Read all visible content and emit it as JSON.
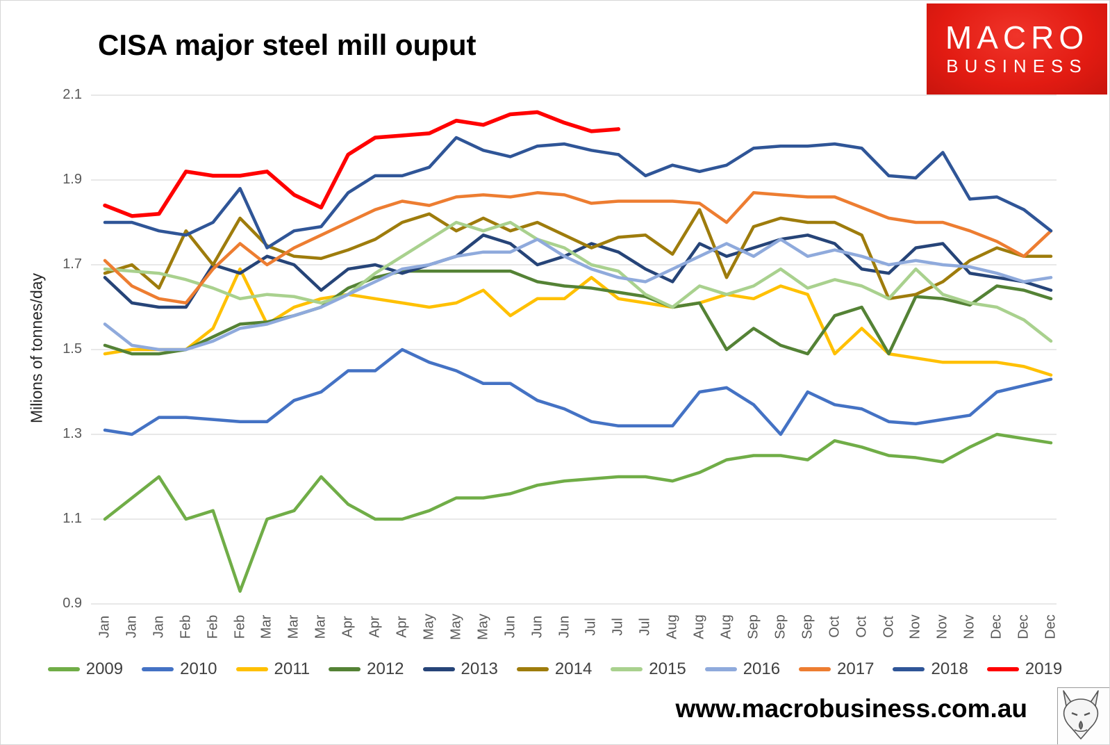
{
  "header": {
    "title": "CISA major steel mill ouput"
  },
  "brand": {
    "line1": "MACRO",
    "line2": "BUSINESS",
    "bg_color": "#E21B12",
    "text_color": "#FFFFFF"
  },
  "footer": {
    "url": "www.macrobusiness.com.au"
  },
  "icons": {
    "fox_logo": "fox-head-sketch"
  },
  "chart_data": {
    "type": "line",
    "title": "CISA major steel mill ouput",
    "xlabel": "",
    "ylabel": "Milions of tonnes/day",
    "ylim": [
      0.9,
      2.1
    ],
    "yticks": [
      2.1,
      1.9,
      1.7,
      1.5,
      1.3,
      1.1,
      0.9
    ],
    "grid": "horizontal",
    "gridline_color": "#D9D9D9",
    "tick_label_color": "#595959",
    "legend_position": "bottom",
    "x_labels": [
      "Jan",
      "Jan",
      "Jan",
      "Feb",
      "Feb",
      "Feb",
      "Mar",
      "Mar",
      "Mar",
      "Apr",
      "Apr",
      "Apr",
      "May",
      "May",
      "May",
      "Jun",
      "Jun",
      "Jun",
      "Jul",
      "Jul",
      "Jul",
      "Aug",
      "Aug",
      "Aug",
      "Sep",
      "Sep",
      "Sep",
      "Oct",
      "Oct",
      "Oct",
      "Nov",
      "Nov",
      "Nov",
      "Dec",
      "Dec",
      "Dec"
    ],
    "series": [
      {
        "name": "2009",
        "color": "#70AD47",
        "values": [
          1.1,
          1.15,
          1.2,
          1.1,
          1.12,
          0.93,
          1.1,
          1.12,
          1.2,
          1.135,
          1.1,
          1.1,
          1.12,
          1.15,
          1.15,
          1.16,
          1.18,
          1.19,
          1.195,
          1.2,
          1.2,
          1.19,
          1.21,
          1.24,
          1.25,
          1.25,
          1.24,
          1.285,
          1.27,
          1.25,
          1.245,
          1.235,
          1.27,
          1.3,
          1.29,
          1.28
        ]
      },
      {
        "name": "2010",
        "color": "#4472C4",
        "values": [
          1.31,
          1.3,
          1.34,
          1.34,
          1.335,
          1.33,
          1.33,
          1.38,
          1.4,
          1.45,
          1.45,
          1.5,
          1.47,
          1.45,
          1.42,
          1.42,
          1.38,
          1.36,
          1.33,
          1.32,
          1.32,
          1.32,
          1.4,
          1.41,
          1.37,
          1.3,
          1.4,
          1.37,
          1.36,
          1.33,
          1.325,
          1.335,
          1.345,
          1.4,
          1.415,
          1.43
        ]
      },
      {
        "name": "2011",
        "color": "#FFC000",
        "values": [
          1.49,
          1.5,
          1.5,
          1.5,
          1.55,
          1.69,
          1.56,
          1.6,
          1.62,
          1.63,
          1.62,
          1.61,
          1.6,
          1.61,
          1.64,
          1.58,
          1.62,
          1.62,
          1.67,
          1.62,
          1.61,
          1.6,
          1.61,
          1.63,
          1.62,
          1.65,
          1.63,
          1.49,
          1.55,
          1.49,
          1.48,
          1.47,
          1.47,
          1.47,
          1.46,
          1.44
        ]
      },
      {
        "name": "2012",
        "color": "#548235",
        "values": [
          1.51,
          1.49,
          1.49,
          1.5,
          1.53,
          1.56,
          1.565,
          1.58,
          1.6,
          1.645,
          1.67,
          1.685,
          1.685,
          1.685,
          1.685,
          1.685,
          1.66,
          1.65,
          1.645,
          1.635,
          1.625,
          1.6,
          1.61,
          1.5,
          1.55,
          1.51,
          1.49,
          1.58,
          1.6,
          1.49,
          1.625,
          1.62,
          1.605,
          1.65,
          1.64,
          1.62
        ]
      },
      {
        "name": "2013",
        "color": "#264478",
        "values": [
          1.67,
          1.61,
          1.6,
          1.6,
          1.7,
          1.68,
          1.72,
          1.7,
          1.64,
          1.69,
          1.7,
          1.68,
          1.7,
          1.72,
          1.77,
          1.75,
          1.7,
          1.72,
          1.75,
          1.73,
          1.69,
          1.66,
          1.75,
          1.72,
          1.74,
          1.76,
          1.77,
          1.75,
          1.69,
          1.68,
          1.74,
          1.75,
          1.68,
          1.67,
          1.66,
          1.64
        ]
      },
      {
        "name": "2014",
        "color": "#9E7C0C",
        "values": [
          1.68,
          1.7,
          1.645,
          1.78,
          1.7,
          1.81,
          1.745,
          1.72,
          1.715,
          1.735,
          1.76,
          1.8,
          1.82,
          1.78,
          1.81,
          1.78,
          1.8,
          1.77,
          1.74,
          1.765,
          1.77,
          1.725,
          1.83,
          1.67,
          1.79,
          1.81,
          1.8,
          1.8,
          1.77,
          1.62,
          1.63,
          1.66,
          1.71,
          1.74,
          1.72,
          1.72
        ]
      },
      {
        "name": "2015",
        "color": "#A9D18E",
        "values": [
          1.69,
          1.685,
          1.68,
          1.665,
          1.645,
          1.62,
          1.63,
          1.625,
          1.61,
          1.63,
          1.68,
          1.72,
          1.76,
          1.8,
          1.78,
          1.8,
          1.76,
          1.74,
          1.7,
          1.685,
          1.63,
          1.6,
          1.65,
          1.63,
          1.65,
          1.69,
          1.645,
          1.665,
          1.65,
          1.62,
          1.69,
          1.63,
          1.61,
          1.6,
          1.57,
          1.52
        ]
      },
      {
        "name": "2016",
        "color": "#8FAADC",
        "values": [
          1.56,
          1.51,
          1.5,
          1.5,
          1.52,
          1.55,
          1.56,
          1.58,
          1.6,
          1.63,
          1.66,
          1.69,
          1.7,
          1.72,
          1.73,
          1.73,
          1.76,
          1.72,
          1.69,
          1.67,
          1.66,
          1.69,
          1.72,
          1.75,
          1.72,
          1.76,
          1.72,
          1.735,
          1.72,
          1.7,
          1.71,
          1.7,
          1.695,
          1.68,
          1.66,
          1.67
        ]
      },
      {
        "name": "2017",
        "color": "#ED7D31",
        "values": [
          1.71,
          1.65,
          1.62,
          1.61,
          1.69,
          1.75,
          1.7,
          1.74,
          1.77,
          1.8,
          1.83,
          1.85,
          1.84,
          1.86,
          1.865,
          1.86,
          1.87,
          1.865,
          1.845,
          1.85,
          1.85,
          1.85,
          1.845,
          1.8,
          1.87,
          1.865,
          1.86,
          1.86,
          1.835,
          1.81,
          1.8,
          1.8,
          1.78,
          1.755,
          1.72,
          1.78
        ]
      },
      {
        "name": "2018",
        "color": "#2F5597",
        "values": [
          1.8,
          1.8,
          1.78,
          1.77,
          1.8,
          1.88,
          1.74,
          1.78,
          1.79,
          1.87,
          1.91,
          1.91,
          1.93,
          2.0,
          1.97,
          1.955,
          1.98,
          1.985,
          1.97,
          1.96,
          1.91,
          1.935,
          1.92,
          1.935,
          1.975,
          1.98,
          1.98,
          1.985,
          1.975,
          1.91,
          1.905,
          1.965,
          1.855,
          1.86,
          1.83,
          1.78
        ]
      },
      {
        "name": "2019",
        "color": "#FF0000",
        "values": [
          1.84,
          1.815,
          1.82,
          1.92,
          1.91,
          1.91,
          1.92,
          1.865,
          1.835,
          1.96,
          2.0,
          2.005,
          2.01,
          2.04,
          2.03,
          2.055,
          2.06,
          2.035,
          2.015,
          2.02
        ]
      }
    ]
  }
}
